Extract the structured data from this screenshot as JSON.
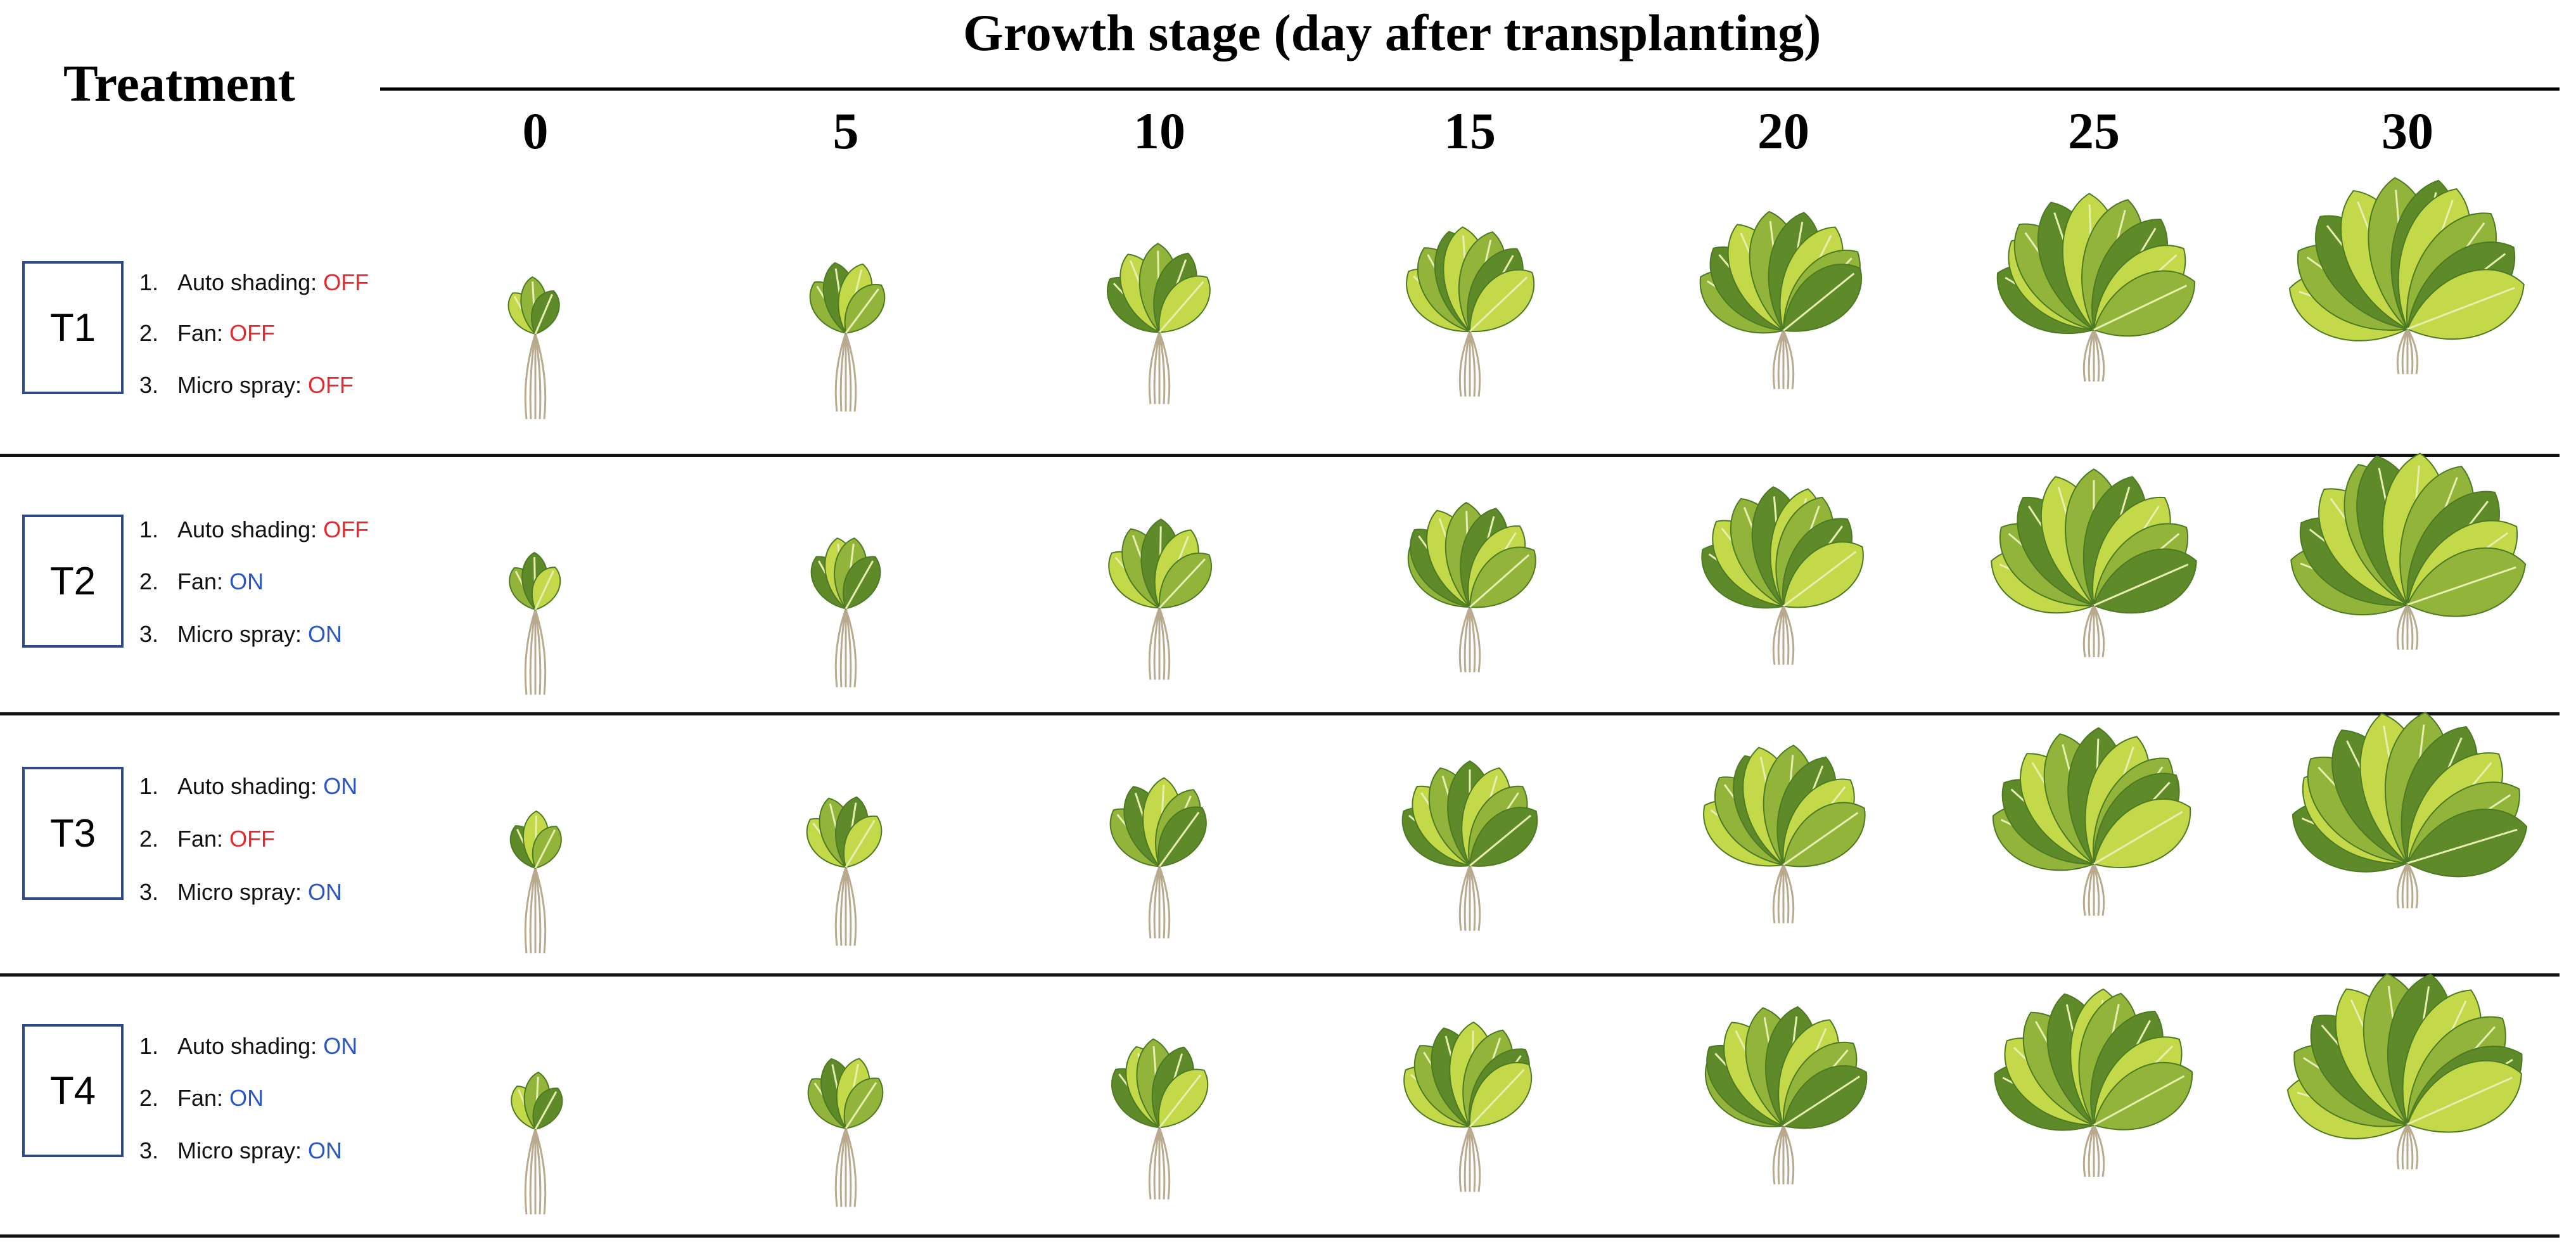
{
  "header": {
    "treatment_label": "Treatment",
    "stage_title": "Growth stage (day after transplanting)",
    "days": [
      "0",
      "5",
      "10",
      "15",
      "20",
      "25",
      "30"
    ]
  },
  "treatments": [
    {
      "id": "T1",
      "conditions": [
        {
          "num": "1.",
          "label": "Auto shading:",
          "state": "OFF"
        },
        {
          "num": "2.",
          "label": "Fan:",
          "state": "OFF"
        },
        {
          "num": "3.",
          "label": "Micro spray:",
          "state": "OFF"
        }
      ]
    },
    {
      "id": "T2",
      "conditions": [
        {
          "num": "1.",
          "label": "Auto shading:",
          "state": "OFF"
        },
        {
          "num": "2.",
          "label": "Fan:",
          "state": "ON"
        },
        {
          "num": "3.",
          "label": "Micro spray:",
          "state": "ON"
        }
      ]
    },
    {
      "id": "T3",
      "conditions": [
        {
          "num": "1.",
          "label": "Auto shading:",
          "state": "ON"
        },
        {
          "num": "2.",
          "label": "Fan:",
          "state": "OFF"
        },
        {
          "num": "3.",
          "label": "Micro spray:",
          "state": "ON"
        }
      ]
    },
    {
      "id": "T4",
      "conditions": [
        {
          "num": "1.",
          "label": "Auto shading:",
          "state": "ON"
        },
        {
          "num": "2.",
          "label": "Fan:",
          "state": "ON"
        },
        {
          "num": "3.",
          "label": "Micro spray:",
          "state": "ON"
        }
      ]
    }
  ],
  "colors": {
    "off": "#e8262b",
    "on": "#2a56c6",
    "box_border": "#2f4a8a",
    "leaf_light": "#c3d94a",
    "leaf_mid": "#93b43a",
    "leaf_dark": "#5e8a2a",
    "root": "#b9a98e"
  },
  "icons": {
    "plant": "lettuce-seedling-photo"
  }
}
